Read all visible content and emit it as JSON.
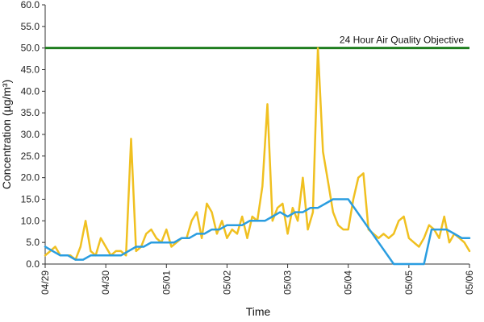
{
  "chart_data": {
    "type": "line",
    "xlabel": "Time",
    "ylabel": "Concentration (µg/m³)",
    "x_tick_labels": [
      "04/29",
      "04/30",
      "05/01",
      "05/02",
      "05/03",
      "05/04",
      "05/05",
      "05/06"
    ],
    "y_tick_labels": [
      "0.0",
      "5.0",
      "10.0",
      "15.0",
      "20.0",
      "25.0",
      "30.0",
      "35.0",
      "40.0",
      "45.0",
      "50.0",
      "55.0",
      "60.0"
    ],
    "ylim": [
      0,
      60
    ],
    "xlim": [
      "04/29",
      "05/06"
    ],
    "grid": false,
    "reference_line": {
      "label": "24 Hour Air Quality Objective",
      "value": 50,
      "color": "#1e7d1e"
    },
    "series": [
      {
        "color": "#f0c020",
        "x": [
          "04/29 00:00",
          "04/29 02:00",
          "04/29 04:00",
          "04/29 06:00",
          "04/29 08:00",
          "04/29 10:00",
          "04/29 12:00",
          "04/29 14:00",
          "04/29 16:00",
          "04/29 18:00",
          "04/29 20:00",
          "04/29 22:00",
          "04/30 00:00",
          "04/30 02:00",
          "04/30 04:00",
          "04/30 06:00",
          "04/30 08:00",
          "04/30 10:00",
          "04/30 12:00",
          "04/30 14:00",
          "04/30 16:00",
          "04/30 18:00",
          "04/30 20:00",
          "04/30 22:00",
          "05/01 00:00",
          "05/01 02:00",
          "05/01 04:00",
          "05/01 06:00",
          "05/01 08:00",
          "05/01 10:00",
          "05/01 12:00",
          "05/01 14:00",
          "05/01 16:00",
          "05/01 18:00",
          "05/01 20:00",
          "05/01 22:00",
          "05/02 00:00",
          "05/02 02:00",
          "05/02 04:00",
          "05/02 06:00",
          "05/02 08:00",
          "05/02 10:00",
          "05/02 12:00",
          "05/02 14:00",
          "05/02 16:00",
          "05/02 18:00",
          "05/02 20:00",
          "05/02 22:00",
          "05/03 00:00",
          "05/03 02:00",
          "05/03 04:00",
          "05/03 06:00",
          "05/03 08:00",
          "05/03 10:00",
          "05/03 12:00",
          "05/03 14:00",
          "05/03 16:00",
          "05/03 18:00",
          "05/03 20:00",
          "05/03 22:00",
          "05/04 00:00",
          "05/04 02:00",
          "05/04 04:00",
          "05/04 06:00",
          "05/04 08:00",
          "05/04 10:00",
          "05/04 12:00",
          "05/04 14:00",
          "05/04 16:00",
          "05/04 18:00",
          "05/04 20:00",
          "05/04 22:00",
          "05/05 00:00",
          "05/05 02:00",
          "05/05 04:00",
          "05/05 06:00",
          "05/05 08:00",
          "05/05 10:00",
          "05/05 12:00",
          "05/05 14:00",
          "05/05 16:00",
          "05/05 18:00",
          "05/05 20:00",
          "05/05 22:00",
          "05/06 00:00"
        ],
        "values": [
          2,
          3,
          4,
          2,
          2,
          2,
          1,
          4,
          10,
          3,
          2,
          6,
          4,
          2,
          3,
          3,
          2,
          29,
          3,
          4,
          7,
          8,
          6,
          5,
          8,
          4,
          5,
          6,
          6,
          10,
          12,
          6,
          14,
          12,
          7,
          10,
          6,
          8,
          7,
          11,
          6,
          11,
          10,
          18,
          37,
          10,
          13,
          14,
          7,
          13,
          10,
          20,
          8,
          12,
          50,
          26,
          19,
          12,
          9,
          8,
          8,
          15,
          20,
          21,
          8,
          7,
          6,
          7,
          6,
          7,
          10,
          11,
          6,
          5,
          4,
          6,
          9,
          8,
          6,
          11,
          5,
          7,
          6,
          5,
          3
        ]
      },
      {
        "color": "#2a9de0",
        "x": [
          "04/29 00:00",
          "04/29 03:00",
          "04/29 06:00",
          "04/29 09:00",
          "04/29 12:00",
          "04/29 15:00",
          "04/29 18:00",
          "04/29 21:00",
          "04/30 00:00",
          "04/30 03:00",
          "04/30 06:00",
          "04/30 09:00",
          "04/30 12:00",
          "04/30 15:00",
          "04/30 18:00",
          "04/30 21:00",
          "05/01 00:00",
          "05/01 03:00",
          "05/01 06:00",
          "05/01 09:00",
          "05/01 12:00",
          "05/01 15:00",
          "05/01 18:00",
          "05/01 21:00",
          "05/02 00:00",
          "05/02 03:00",
          "05/02 06:00",
          "05/02 09:00",
          "05/02 12:00",
          "05/02 15:00",
          "05/02 18:00",
          "05/02 21:00",
          "05/03 00:00",
          "05/03 03:00",
          "05/03 06:00",
          "05/03 09:00",
          "05/03 12:00",
          "05/03 15:00",
          "05/03 18:00",
          "05/03 21:00",
          "05/04 00:00",
          "05/04 06:00",
          "05/04 12:00",
          "05/04 18:00",
          "05/05 00:00",
          "05/05 06:00",
          "05/05 09:00",
          "05/05 12:00",
          "05/05 15:00",
          "05/05 18:00",
          "05/05 21:00",
          "05/06 00:00"
        ],
        "values": [
          4,
          3,
          2,
          2,
          1,
          1,
          2,
          2,
          2,
          2,
          2,
          3,
          4,
          4,
          5,
          5,
          5,
          5,
          6,
          6,
          7,
          7,
          8,
          8,
          9,
          9,
          9,
          10,
          10,
          10,
          11,
          12,
          11,
          12,
          12,
          13,
          13,
          14,
          15,
          15,
          15,
          10,
          5,
          0,
          0,
          0,
          8,
          8,
          8,
          7,
          6,
          6
        ]
      }
    ]
  }
}
